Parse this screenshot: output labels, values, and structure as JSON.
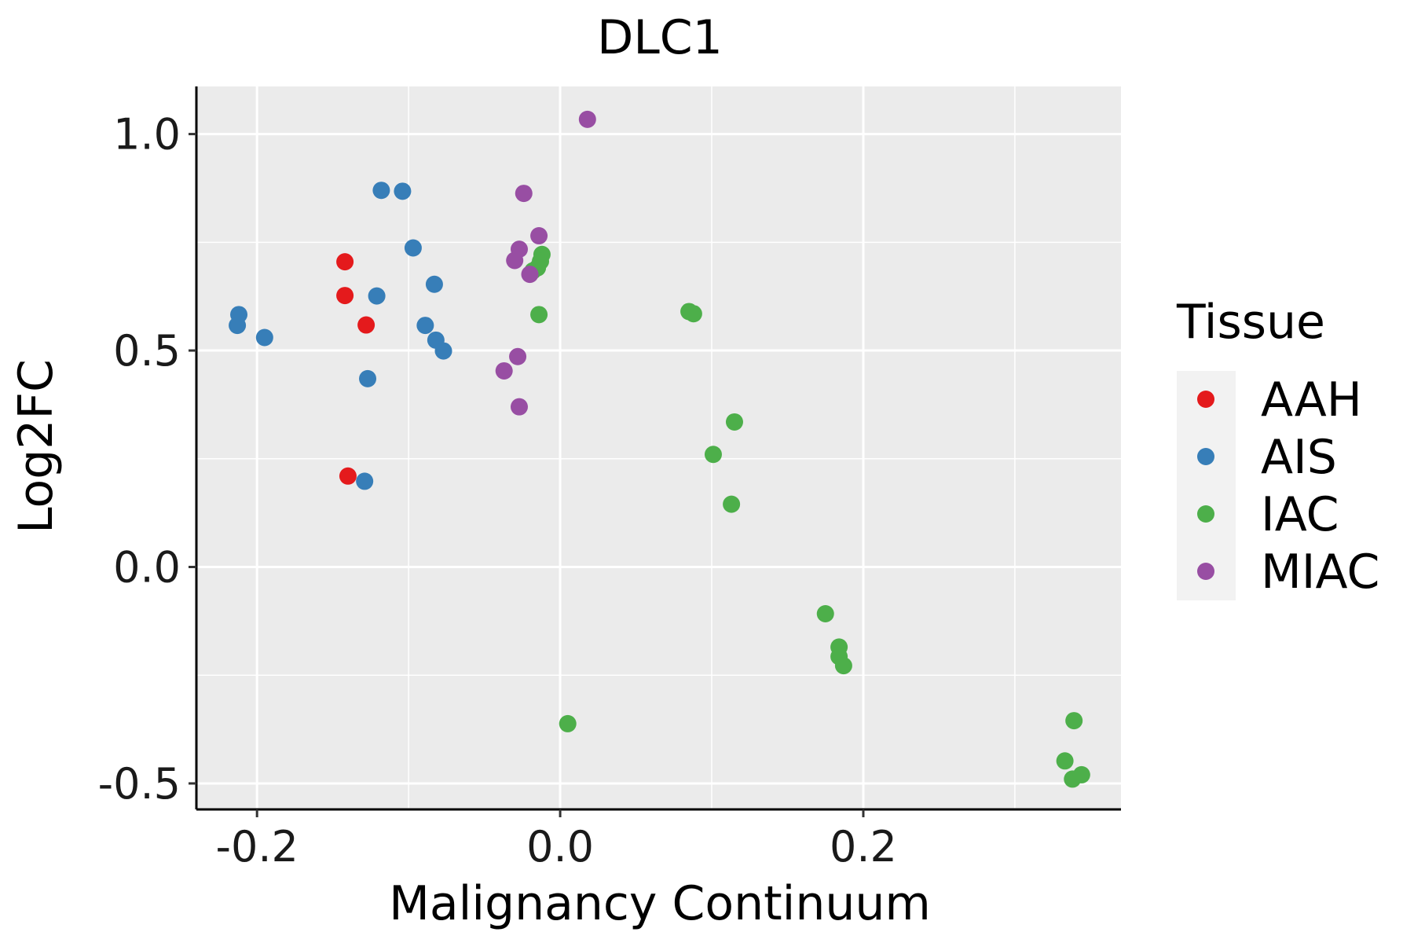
{
  "chart_data": {
    "type": "scatter",
    "title": "DLC1",
    "xlabel": "Malignancy Continuum",
    "ylabel": "Log2FC",
    "xlim": [
      -0.24,
      0.37
    ],
    "ylim": [
      -0.56,
      1.11
    ],
    "x_ticks": [
      -0.2,
      0.0,
      0.2
    ],
    "x_tick_labels": [
      "-0.2",
      "0.0",
      "0.2"
    ],
    "y_ticks": [
      -0.5,
      0.0,
      0.5,
      1.0
    ],
    "y_tick_labels": [
      "-0.5",
      "0.0",
      "0.5",
      "1.0"
    ],
    "grid": true,
    "legend_title": "Tissue",
    "legend_position": "right",
    "series": [
      {
        "name": "AAH",
        "color": "#E41A1C",
        "points": [
          [
            -0.142,
            0.705
          ],
          [
            -0.142,
            0.627
          ],
          [
            -0.128,
            0.559
          ],
          [
            -0.14,
            0.21
          ]
        ]
      },
      {
        "name": "AIS",
        "color": "#377EB8",
        "points": [
          [
            -0.212,
            0.583
          ],
          [
            -0.213,
            0.558
          ],
          [
            -0.195,
            0.53
          ],
          [
            -0.118,
            0.87
          ],
          [
            -0.104,
            0.868
          ],
          [
            -0.097,
            0.737
          ],
          [
            -0.121,
            0.626
          ],
          [
            -0.083,
            0.653
          ],
          [
            -0.089,
            0.558
          ],
          [
            -0.082,
            0.524
          ],
          [
            -0.077,
            0.499
          ],
          [
            -0.127,
            0.435
          ],
          [
            -0.129,
            0.198
          ]
        ]
      },
      {
        "name": "IAC",
        "color": "#4DAF4A",
        "points": [
          [
            -0.012,
            0.722
          ],
          [
            -0.013,
            0.706
          ],
          [
            -0.018,
            0.684
          ],
          [
            -0.015,
            0.691
          ],
          [
            -0.014,
            0.583
          ],
          [
            0.085,
            0.59
          ],
          [
            0.088,
            0.585
          ],
          [
            0.115,
            0.335
          ],
          [
            0.101,
            0.26
          ],
          [
            0.113,
            0.145
          ],
          [
            0.175,
            -0.108
          ],
          [
            0.184,
            -0.185
          ],
          [
            0.184,
            -0.207
          ],
          [
            0.187,
            -0.228
          ],
          [
            0.005,
            -0.362
          ],
          [
            0.339,
            -0.355
          ],
          [
            0.333,
            -0.448
          ],
          [
            0.338,
            -0.49
          ],
          [
            0.344,
            -0.48
          ]
        ]
      },
      {
        "name": "MIAC",
        "color": "#984EA3",
        "points": [
          [
            0.018,
            1.034
          ],
          [
            -0.024,
            0.863
          ],
          [
            -0.014,
            0.765
          ],
          [
            -0.027,
            0.734
          ],
          [
            -0.03,
            0.708
          ],
          [
            -0.02,
            0.676
          ],
          [
            -0.028,
            0.486
          ],
          [
            -0.037,
            0.453
          ],
          [
            -0.027,
            0.37
          ]
        ]
      }
    ]
  }
}
